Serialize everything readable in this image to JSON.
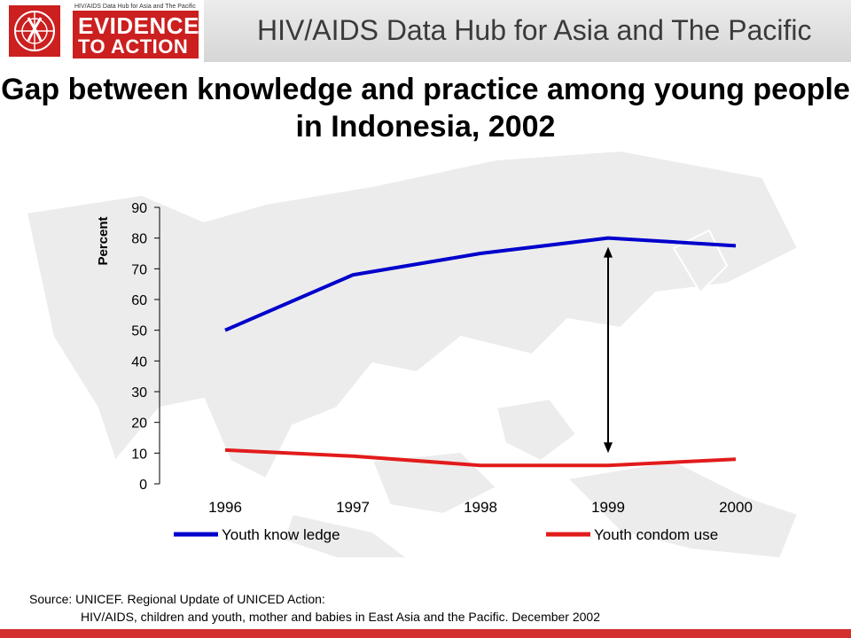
{
  "header": {
    "logo_small_text": "HIV/AIDS Data Hub for Asia and The Pacific",
    "logo_line1": "EVIDENCE",
    "logo_line2": "TO ACTION",
    "hub_title": "HIV/AIDS Data Hub for Asia and The Pacific"
  },
  "colors": {
    "knowledge": "#0000cc",
    "condom": "#e21b1b",
    "accent_red": "#cc1f1f"
  },
  "chart_data": {
    "type": "line",
    "title": "Gap between knowledge and practice among young people in Indonesia, 2002",
    "ylabel": "Percent",
    "xlabel": "",
    "ylim": [
      0,
      90
    ],
    "yticks": [
      0,
      10,
      20,
      30,
      40,
      50,
      60,
      70,
      80,
      90
    ],
    "categories": [
      "1996",
      "1997",
      "1998",
      "1999",
      "2000"
    ],
    "series": [
      {
        "name": "Youth know ledge",
        "values": [
          50,
          68,
          75,
          80,
          77.5
        ]
      },
      {
        "name": "Youth condom use",
        "values": [
          11,
          9,
          6,
          6,
          8
        ]
      }
    ],
    "annotation": {
      "type": "double-arrow",
      "category": "1999",
      "from": 6,
      "to": 80
    },
    "legend": "bottom",
    "grid": false
  },
  "source": {
    "line1": "Source: UNICEF. Regional Update of UNICED Action:",
    "line2": "HIV/AIDS, children and youth, mother and babies in East Asia and the Pacific. December 2002"
  }
}
